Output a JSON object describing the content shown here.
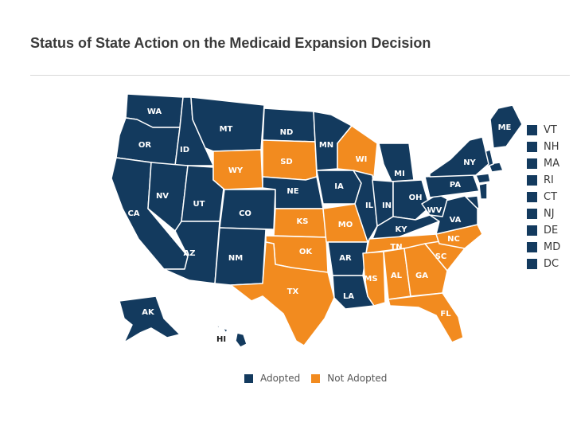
{
  "title": "Status of State Action on the Medicaid Expansion Decision",
  "colors": {
    "adopted": "#133a5e",
    "not_adopted": "#f28b1f",
    "highlight_outline": "#000000"
  },
  "legend": [
    {
      "key": "adopted",
      "label": "Adopted"
    },
    {
      "key": "not_adopted",
      "label": "Not Adopted"
    }
  ],
  "small_states": [
    {
      "code": "VT",
      "status": "adopted"
    },
    {
      "code": "NH",
      "status": "adopted"
    },
    {
      "code": "MA",
      "status": "adopted"
    },
    {
      "code": "RI",
      "status": "adopted"
    },
    {
      "code": "CT",
      "status": "adopted"
    },
    {
      "code": "NJ",
      "status": "adopted"
    },
    {
      "code": "DE",
      "status": "adopted"
    },
    {
      "code": "MD",
      "status": "adopted"
    },
    {
      "code": "DC",
      "status": "adopted"
    }
  ],
  "states": [
    {
      "code": "WA",
      "status": "adopted"
    },
    {
      "code": "OR",
      "status": "adopted"
    },
    {
      "code": "CA",
      "status": "adopted"
    },
    {
      "code": "ID",
      "status": "adopted"
    },
    {
      "code": "NV",
      "status": "adopted"
    },
    {
      "code": "UT",
      "status": "adopted"
    },
    {
      "code": "AZ",
      "status": "adopted"
    },
    {
      "code": "MT",
      "status": "adopted"
    },
    {
      "code": "WY",
      "status": "not_adopted"
    },
    {
      "code": "CO",
      "status": "adopted"
    },
    {
      "code": "NM",
      "status": "adopted"
    },
    {
      "code": "ND",
      "status": "adopted"
    },
    {
      "code": "SD",
      "status": "not_adopted"
    },
    {
      "code": "NE",
      "status": "adopted"
    },
    {
      "code": "KS",
      "status": "not_adopted"
    },
    {
      "code": "OK",
      "status": "not_adopted"
    },
    {
      "code": "TX",
      "status": "not_adopted"
    },
    {
      "code": "MN",
      "status": "adopted"
    },
    {
      "code": "IA",
      "status": "adopted"
    },
    {
      "code": "MO",
      "status": "not_adopted"
    },
    {
      "code": "AR",
      "status": "adopted"
    },
    {
      "code": "LA",
      "status": "adopted"
    },
    {
      "code": "WI",
      "status": "not_adopted"
    },
    {
      "code": "IL",
      "status": "adopted"
    },
    {
      "code": "MI",
      "status": "adopted"
    },
    {
      "code": "IN",
      "status": "adopted"
    },
    {
      "code": "OH",
      "status": "adopted"
    },
    {
      "code": "KY",
      "status": "adopted"
    },
    {
      "code": "TN",
      "status": "not_adopted"
    },
    {
      "code": "MS",
      "status": "not_adopted"
    },
    {
      "code": "AL",
      "status": "not_adopted"
    },
    {
      "code": "GA",
      "status": "not_adopted"
    },
    {
      "code": "FL",
      "status": "not_adopted"
    },
    {
      "code": "SC",
      "status": "not_adopted"
    },
    {
      "code": "NC",
      "status": "not_adopted"
    },
    {
      "code": "VA",
      "status": "adopted"
    },
    {
      "code": "WV",
      "status": "adopted"
    },
    {
      "code": "PA",
      "status": "adopted"
    },
    {
      "code": "NY",
      "status": "adopted"
    },
    {
      "code": "ME",
      "status": "adopted",
      "highlighted": true
    },
    {
      "code": "AK",
      "status": "adopted"
    },
    {
      "code": "HI",
      "status": "adopted"
    }
  ]
}
